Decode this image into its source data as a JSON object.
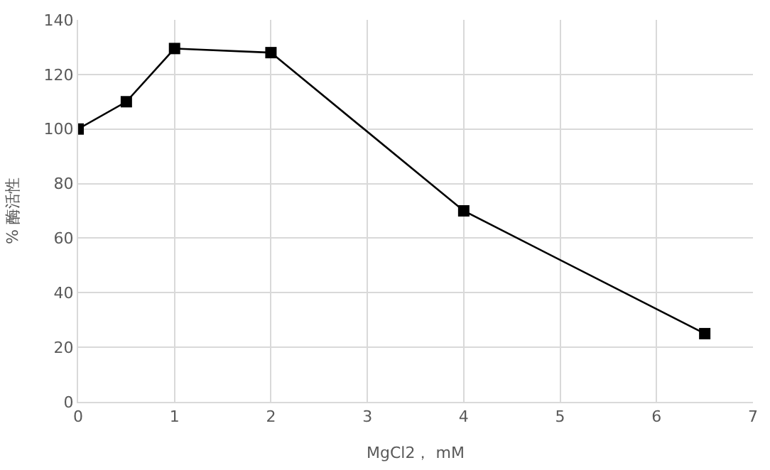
{
  "chart_data": {
    "type": "line",
    "xlabel": "MgCl2， mM",
    "ylabel": "% 酶活性",
    "x": [
      0,
      0.5,
      1,
      2,
      4,
      6.5
    ],
    "series": [
      {
        "color": "#000000",
        "values": [
          100,
          110,
          129.5,
          128,
          70,
          25
        ]
      }
    ],
    "xlim": [
      0,
      7
    ],
    "xticks": [
      0,
      1,
      2,
      3,
      4,
      5,
      6,
      7
    ],
    "ylim": [
      0,
      140
    ],
    "yticks": [
      0,
      20,
      40,
      60,
      80,
      100,
      120,
      140
    ],
    "grid": true,
    "marker": "square",
    "line_style": "solid"
  }
}
